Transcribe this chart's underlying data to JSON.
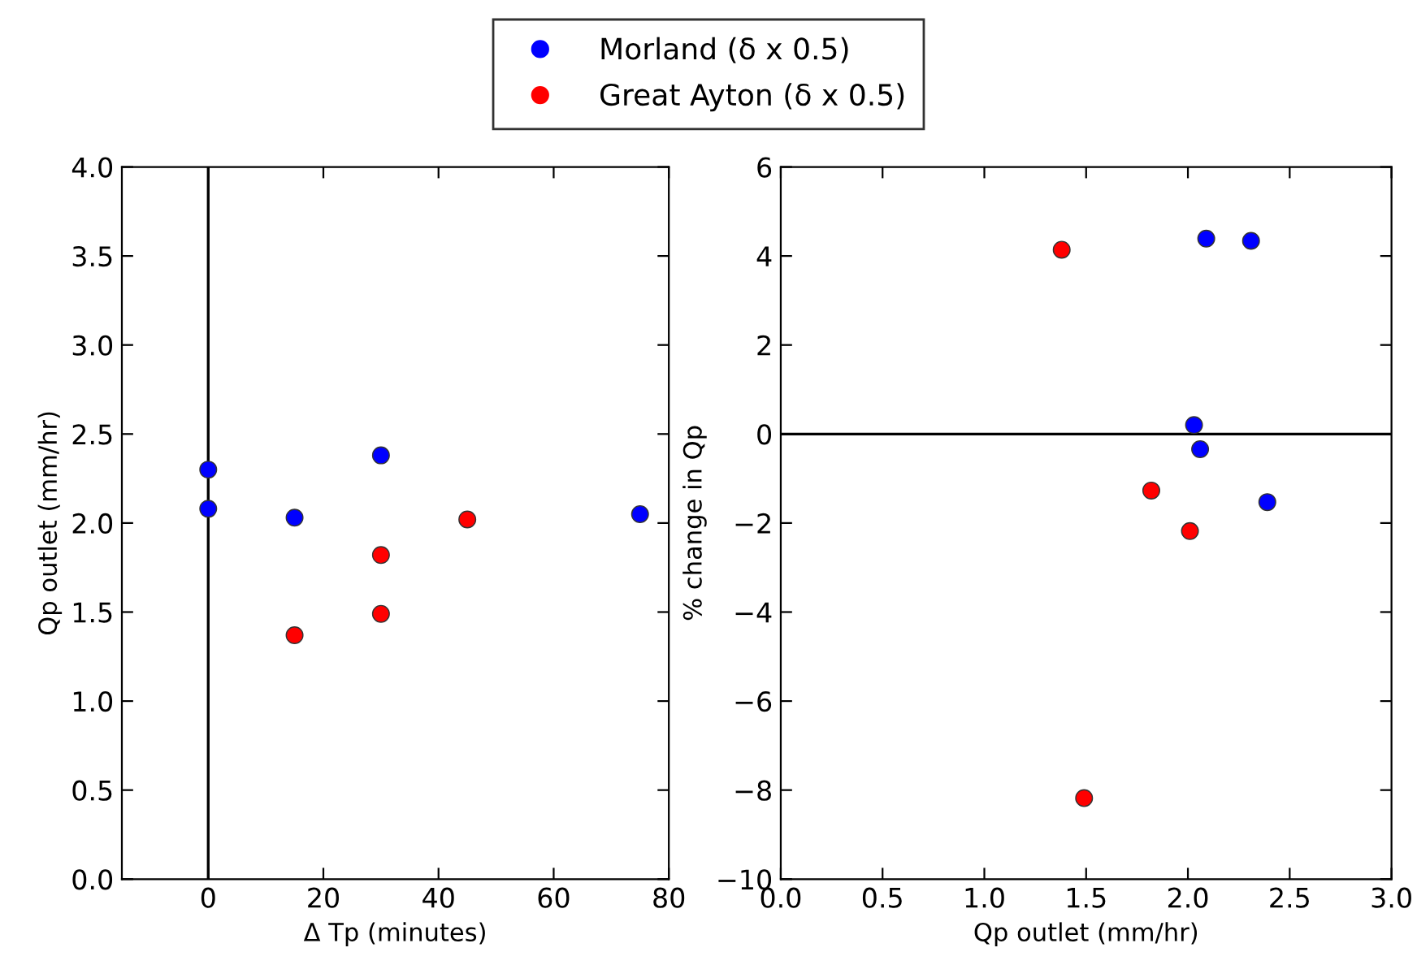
{
  "chart_data": [
    {
      "type": "scatter",
      "xlabel": "Δ Tp (minutes)",
      "ylabel": "Qp outlet (mm/hr)",
      "xlim": [
        -15,
        80
      ],
      "xticks": [
        0,
        20,
        40,
        60,
        80
      ],
      "ylim": [
        0,
        4.0
      ],
      "yticks": [
        {
          "value": 0,
          "label": "0.0"
        },
        0.5,
        {
          "value": 1,
          "label": "1.0"
        },
        1.5,
        {
          "value": 2,
          "label": "2.0"
        },
        2.5,
        {
          "value": 3,
          "label": "3.0"
        },
        3.5,
        {
          "value": 4,
          "label": "4.0"
        }
      ],
      "marker": "circle",
      "legend": "top",
      "grid": false,
      "ref_lines": [
        {
          "axis": "x",
          "value": 0,
          "color": "#000000"
        }
      ],
      "series": [
        {
          "name": "Morland (δ x 0.5)",
          "color": "#0000ff",
          "x": [
            0,
            0,
            15,
            30,
            75
          ],
          "values": [
            2.3,
            2.08,
            2.03,
            2.38,
            2.05
          ]
        },
        {
          "name": "Great Ayton (δ x 0.5)",
          "color": "#ff0000",
          "x": [
            15,
            30,
            30,
            45
          ],
          "values": [
            1.37,
            1.82,
            1.49,
            2.02
          ]
        }
      ]
    },
    {
      "type": "scatter",
      "xlabel": "Qp outlet (mm/hr)",
      "ylabel": "% change in Qp",
      "xlim": [
        0,
        3.0
      ],
      "xticks": [
        {
          "value": 0,
          "label": "0.0"
        },
        0.5,
        {
          "value": 1,
          "label": "1.0"
        },
        1.5,
        {
          "value": 2,
          "label": "2.0"
        },
        2.5,
        {
          "value": 3,
          "label": "3.0"
        }
      ],
      "ylim": [
        -10,
        6
      ],
      "yticks": [
        {
          "value": -10,
          "label": "−10"
        },
        {
          "value": -8,
          "label": "−8"
        },
        {
          "value": -6,
          "label": "−6"
        },
        {
          "value": -4,
          "label": "−4"
        },
        {
          "value": -2,
          "label": "−2"
        },
        0,
        2,
        4,
        6
      ],
      "marker": "circle",
      "grid": false,
      "ref_lines": [
        {
          "axis": "y",
          "value": 0,
          "color": "#000000"
        }
      ],
      "series": [
        {
          "color": "#0000ff",
          "x": [
            2.09,
            2.31,
            2.03,
            2.06,
            2.39
          ],
          "values": [
            4.39,
            4.34,
            0.2,
            -0.34,
            -1.53
          ]
        },
        {
          "color": "#ff0000",
          "x": [
            1.38,
            1.82,
            2.01,
            1.49
          ],
          "values": [
            4.14,
            -1.27,
            -2.18,
            -8.18
          ]
        }
      ]
    }
  ]
}
